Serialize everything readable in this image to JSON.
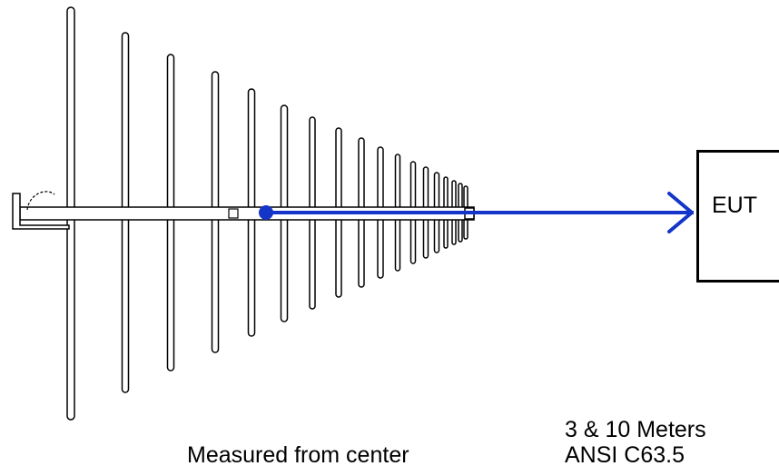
{
  "target": {
    "label": "EUT"
  },
  "caption": {
    "measured_from": "Measured from center",
    "distance": "3 & 10 Meters",
    "standard": "ANSI C63.5"
  },
  "colors": {
    "measurement_line": "#1435c8",
    "outline": "#000000",
    "background": "#ffffff"
  }
}
